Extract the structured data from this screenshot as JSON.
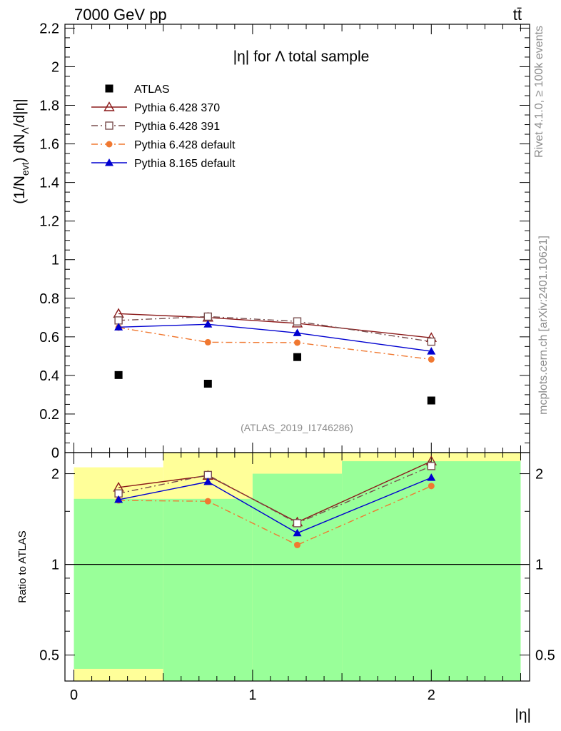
{
  "header": {
    "energy_label": "7000 GeV pp",
    "process_label": "tt̄"
  },
  "side_labels": {
    "rivet": "Rivet 4.1.0, ≥ 100k events",
    "mcplots": "mcplots.cern.ch [arXiv:2401.10621]"
  },
  "chart_data": [
    {
      "type": "line",
      "panel": "main",
      "title": "|η| for Λ total sample",
      "watermark": "(ATLAS_2019_I1746286)",
      "xlabel": "|η|",
      "ylabel": "(1/N_evt) dN_Λ/d|η|",
      "ylabel_parts": {
        "prefix": "(1/N",
        "sub1": "evt",
        "middle": ") dN",
        "sub2": "Λ",
        "suffix": "/d|η|"
      },
      "xlim": [
        -0.05,
        2.55
      ],
      "ylim": [
        0,
        2.22
      ],
      "yticks": [
        "0",
        "0.2",
        "0.4",
        "0.6",
        "0.8",
        "1",
        "1.2",
        "1.4",
        "1.6",
        "1.8",
        "2",
        "2.2"
      ],
      "legend_position": "top-left",
      "x": [
        0.25,
        0.75,
        1.25,
        2.0
      ],
      "series": [
        {
          "name": "ATLAS",
          "marker": "square-filled",
          "color": "#000000",
          "line": "none",
          "values": [
            0.402,
            0.357,
            0.495,
            0.27
          ]
        },
        {
          "name": "Pythia 6.428 370",
          "marker": "triangle-open",
          "color": "#8b1a1a",
          "line": "solid",
          "values": [
            0.72,
            0.7,
            0.67,
            0.595
          ]
        },
        {
          "name": "Pythia 6.428 391",
          "marker": "square-open",
          "color": "#7a4f4f",
          "line": "dashdot",
          "values": [
            0.685,
            0.705,
            0.68,
            0.575
          ]
        },
        {
          "name": "Pythia 6.428 default",
          "marker": "circle-filled",
          "color": "#f07830",
          "line": "dashdot",
          "values": [
            0.648,
            0.572,
            0.57,
            0.483
          ]
        },
        {
          "name": "Pythia 8.165 default",
          "marker": "triangle-filled",
          "color": "#0000d0",
          "line": "solid",
          "values": [
            0.65,
            0.665,
            0.62,
            0.525
          ]
        }
      ]
    },
    {
      "type": "line",
      "panel": "ratio",
      "ylabel": "Ratio to ATLAS",
      "xlabel": "|η|",
      "xlim": [
        -0.05,
        2.55
      ],
      "ylim": [
        0.41,
        2.35
      ],
      "yscale": "log",
      "yticks": [
        "0.5",
        "1",
        "2"
      ],
      "xticks": [
        "0",
        "1",
        "2"
      ],
      "reference_line": 1,
      "bands": [
        {
          "x_range": [
            0,
            0.5
          ],
          "green": [
            0.45,
            1.65
          ],
          "yellow": [
            0.41,
            2.1
          ]
        },
        {
          "x_range": [
            0.5,
            1.0
          ],
          "green": [
            0.41,
            1.65
          ],
          "yellow": [
            0.41,
            2.35
          ]
        },
        {
          "x_range": [
            1.0,
            1.5
          ],
          "green": [
            0.41,
            2.0
          ],
          "yellow": [
            0.41,
            2.35
          ]
        },
        {
          "x_range": [
            1.5,
            2.5
          ],
          "green": [
            0.41,
            2.2
          ],
          "yellow": [
            0.41,
            2.35
          ]
        }
      ],
      "x": [
        0.25,
        0.75,
        1.25,
        2.0
      ],
      "series": [
        {
          "name": "Pythia 6.428 370",
          "values": [
            1.8,
            1.97,
            1.38,
            2.2
          ]
        },
        {
          "name": "Pythia 6.428 391",
          "values": [
            1.72,
            1.98,
            1.37,
            2.12
          ]
        },
        {
          "name": "Pythia 6.428 default",
          "values": [
            1.63,
            1.62,
            1.16,
            1.82
          ]
        },
        {
          "name": "Pythia 8.165 default",
          "values": [
            1.64,
            1.88,
            1.27,
            1.94
          ]
        }
      ]
    }
  ]
}
